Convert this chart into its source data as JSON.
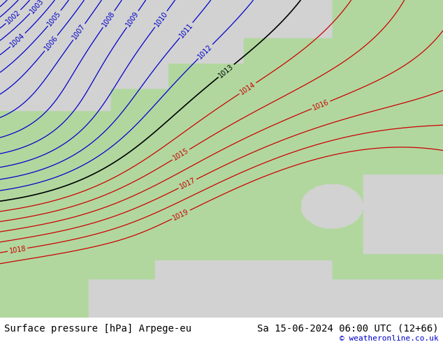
{
  "title_left": "Surface pressure [hPa] Arpege-eu",
  "title_right": "Sa 15-06-2024 06:00 UTC (12+66)",
  "copyright": "© weatheronline.co.uk",
  "land_color_rgb": [
    0.698,
    0.847,
    0.624
  ],
  "sea_color_rgb": [
    0.824,
    0.824,
    0.824
  ],
  "blue_color": "#0000cc",
  "red_color": "#cc0000",
  "black_color": "#000000",
  "title_fontsize": 10,
  "copyright_fontsize": 8,
  "contour_fontsize": 7,
  "figsize": [
    6.34,
    4.9
  ],
  "dpi": 100,
  "bottom_bar_color": "#ffffff",
  "bottom_bar_height": 0.072
}
